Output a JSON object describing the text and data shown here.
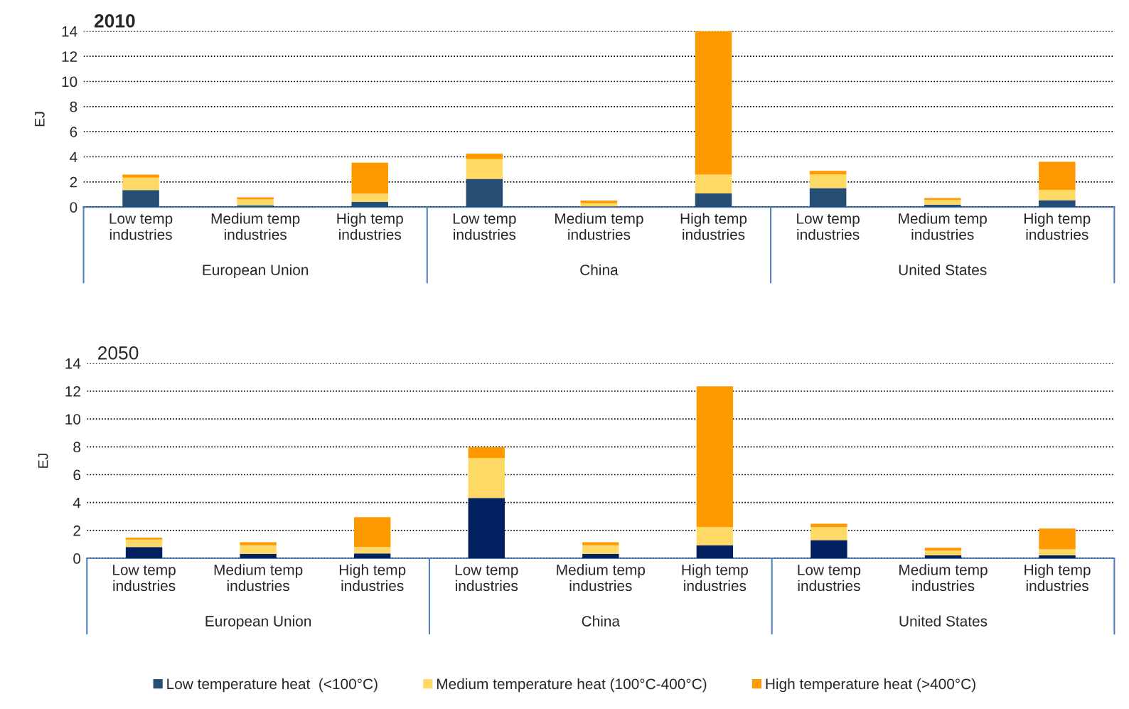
{
  "chart_data": [
    {
      "type": "bar",
      "title": "2010",
      "ylabel": "EJ",
      "stacked": true,
      "ylim": [
        0,
        14
      ],
      "yticks": [
        0,
        2,
        4,
        6,
        8,
        10,
        12,
        14
      ],
      "grid": "y",
      "legend": "bottom",
      "categories": [
        "Low temp\nindustries",
        "Medium temp\nindustries",
        "High temp\nindustries",
        "Low temp\nindustries",
        "Medium temp\nindustries",
        "High temp\nindustries",
        "Low temp\nindustries",
        "Medium temp\nindustries",
        "High temp\nindustries"
      ],
      "annotations": [
        "European Union",
        "China",
        "United States"
      ],
      "series": [
        {
          "name": "Low temperature heat  (<100°C)",
          "color": "#264d73",
          "values": [
            1.35,
            0.14,
            0.42,
            2.24,
            0.05,
            1.08,
            1.51,
            0.19,
            0.55
          ]
        },
        {
          "name": "Medium temperature heat (100°C-400°C)",
          "color": "#ffd966",
          "values": [
            0.99,
            0.46,
            0.65,
            1.57,
            0.25,
            1.5,
            1.09,
            0.37,
            0.81
          ]
        },
        {
          "name": "High temperature heat (>400°C)",
          "color": "#ff9900",
          "values": [
            0.24,
            0.17,
            2.46,
            0.44,
            0.21,
            11.42,
            0.28,
            0.16,
            2.24
          ]
        }
      ]
    },
    {
      "type": "bar",
      "title": "2050",
      "ylabel": "EJ",
      "stacked": true,
      "ylim": [
        0,
        14
      ],
      "yticks": [
        0,
        2,
        4,
        6,
        8,
        10,
        12,
        14
      ],
      "grid": "y",
      "categories": [
        "Low temp\nindustries",
        "Medium temp\nindustries",
        "High temp\nindustries",
        "Low temp\nindustries",
        "Medium temp\nindustries",
        "High temp\nindustries",
        "Low temp\nindustries",
        "Medium temp\nindustries",
        "High temp\nindustries"
      ],
      "annotations": [
        "European Union",
        "China",
        "United States"
      ],
      "series": [
        {
          "color": "#002060",
          "values": [
            0.8,
            0.31,
            0.35,
            4.33,
            0.31,
            0.94,
            1.3,
            0.2,
            0.2
          ]
        },
        {
          "color": "#ffd966",
          "values": [
            0.54,
            0.63,
            0.45,
            2.87,
            0.63,
            1.31,
            0.94,
            0.35,
            0.44
          ]
        },
        {
          "color": "#ff9900",
          "values": [
            0.14,
            0.21,
            2.15,
            0.78,
            0.21,
            10.09,
            0.24,
            0.2,
            1.5
          ]
        }
      ]
    }
  ]
}
